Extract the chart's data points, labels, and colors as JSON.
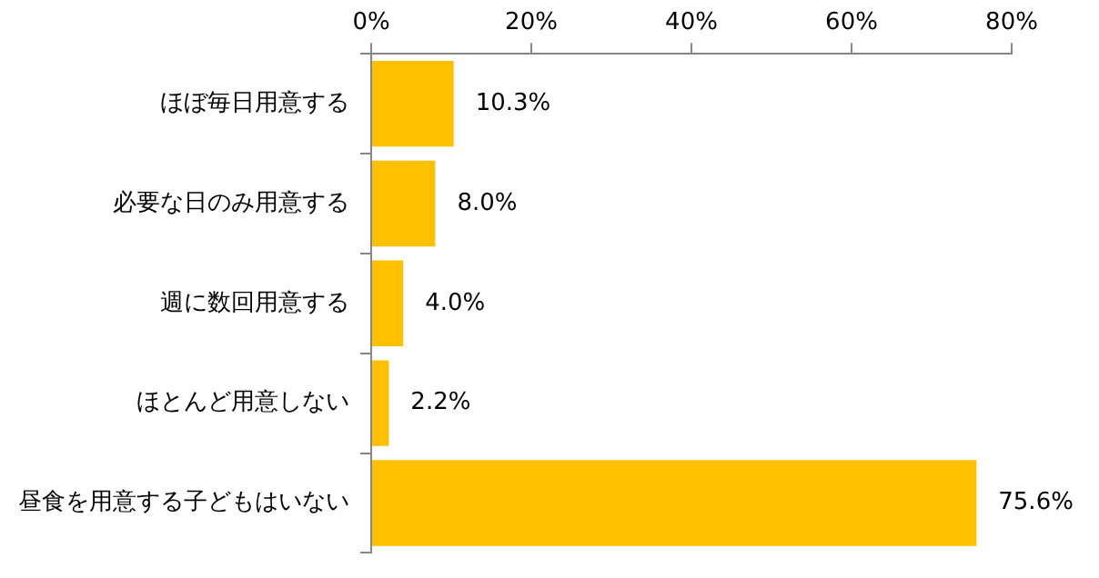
{
  "chart_data": {
    "type": "bar",
    "orientation": "horizontal",
    "categories": [
      "ほぼ毎日用意する",
      "必要な日のみ用意する",
      "週に数回用意する",
      "ほとんど用意しない",
      "昼食を用意する子どもはいない"
    ],
    "values": [
      10.3,
      8.0,
      4.0,
      2.2,
      75.6
    ],
    "value_labels": [
      "10.3%",
      "8.0%",
      "4.0%",
      "2.2%",
      "75.6%"
    ],
    "color": "#ffc000",
    "xlim": [
      0,
      80
    ],
    "xticks": [
      {
        "value": 0,
        "label": "0%"
      },
      {
        "value": 20,
        "label": "20%"
      },
      {
        "value": 40,
        "label": "40%"
      },
      {
        "value": 60,
        "label": "60%"
      },
      {
        "value": 80,
        "label": "80%"
      }
    ],
    "grid": false,
    "legend": false
  }
}
